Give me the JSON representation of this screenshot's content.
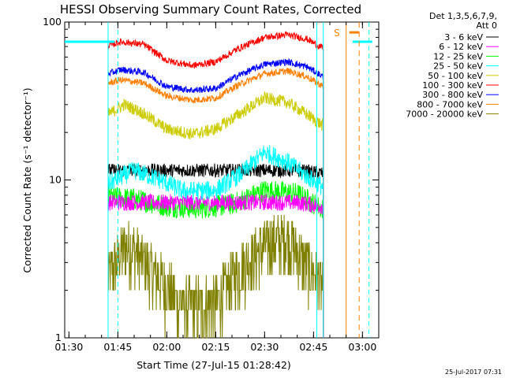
{
  "colors": {
    "3-6": "#000000",
    "6-12": "#ff00ff",
    "12-25": "#00ff00",
    "25-50": "#00ffff",
    "50-100": "#cccc00",
    "100-300": "#ff0000",
    "300-800": "#0000ff",
    "800-7000": "#ff8000",
    "7000-20000": "#808000",
    "attenuator_marker": "#00ffff",
    "saa_marker": "#ff8000"
  },
  "chart_data": {
    "type": "line",
    "title": "HESSI Observing Summary Count Rates, Corrected",
    "xlabel": "Start Time (27-Jul-15 01:28:42)",
    "ylabel": "Corrected Count Rate (s⁻¹ detector⁻¹)",
    "xlim": [
      "01:28:42",
      "03:05:00"
    ],
    "ylim": [
      1,
      100
    ],
    "yscale": "log",
    "x_ticks": [
      "01:30",
      "01:45",
      "02:00",
      "02:15",
      "02:30",
      "02:45",
      "03:00"
    ],
    "y_ticks": [
      "1",
      "10",
      "100"
    ],
    "grid": false,
    "legend_title_lines": [
      "Det 1,3,5,6,7,9,",
      "Att 0"
    ],
    "legend_position": "right",
    "series": [
      {
        "name": "3 - 6 keV",
        "color_key": "3-6",
        "x": [
          "01:42",
          "01:50",
          "02:00",
          "02:10",
          "02:20",
          "02:30",
          "02:40",
          "02:48"
        ],
        "y": [
          11.5,
          11.5,
          11.5,
          11.5,
          11.5,
          11.5,
          11.5,
          11
        ]
      },
      {
        "name": "6 - 12 keV",
        "color_key": "6-12",
        "x": [
          "01:42",
          "01:50",
          "02:00",
          "02:10",
          "02:20",
          "02:30",
          "02:40",
          "02:48"
        ],
        "y": [
          7.2,
          7.2,
          7.2,
          7.2,
          7.2,
          7.2,
          7.2,
          6.8
        ]
      },
      {
        "name": "12 - 25 keV",
        "color_key": "12-25",
        "x": [
          "01:42",
          "01:50",
          "02:00",
          "02:10",
          "02:20",
          "02:30",
          "02:40",
          "02:48"
        ],
        "y": [
          7.8,
          7.6,
          6.8,
          6.6,
          7.0,
          8.6,
          8.2,
          6.5
        ]
      },
      {
        "name": "25 - 50 keV",
        "color_key": "25-50",
        "x": [
          "01:42",
          "01:50",
          "01:58",
          "02:05",
          "02:15",
          "02:23",
          "02:30",
          "02:37",
          "02:43",
          "02:48"
        ],
        "y": [
          9.5,
          11.5,
          10.0,
          8.5,
          8.6,
          11.0,
          15.0,
          13.0,
          10.5,
          9.0
        ]
      },
      {
        "name": "50 - 100 keV",
        "color_key": "50-100",
        "x": [
          "01:42",
          "01:47",
          "01:52",
          "02:00",
          "02:08",
          "02:15",
          "02:22",
          "02:30",
          "02:37",
          "02:43",
          "02:48"
        ],
        "y": [
          26,
          30,
          27,
          21,
          19.5,
          21,
          26,
          33,
          31,
          26,
          22
        ]
      },
      {
        "name": "100 - 300 keV",
        "color_key": "100-300",
        "x": [
          "01:42",
          "01:46",
          "01:53",
          "02:00",
          "02:08",
          "02:15",
          "02:22",
          "02:30",
          "02:37",
          "02:43",
          "02:48"
        ],
        "y": [
          71,
          75,
          72,
          57,
          53,
          56,
          68,
          80,
          83,
          78,
          68
        ]
      },
      {
        "name": "300 - 800 keV",
        "color_key": "300-800",
        "x": [
          "01:42",
          "01:46",
          "01:53",
          "02:00",
          "02:08",
          "02:15",
          "02:22",
          "02:30",
          "02:37",
          "02:43",
          "02:48"
        ],
        "y": [
          47,
          50,
          48,
          39,
          37,
          38,
          46,
          54,
          56,
          52,
          45
        ]
      },
      {
        "name": "800 - 7000 keV",
        "color_key": "800-7000",
        "x": [
          "01:42",
          "01:46",
          "01:53",
          "02:00",
          "02:08",
          "02:15",
          "02:22",
          "02:30",
          "02:37",
          "02:43",
          "02:48"
        ],
        "y": [
          41,
          43,
          41,
          34,
          32,
          33,
          40,
          47,
          49,
          45,
          39
        ]
      },
      {
        "name": "7000 - 20000 keV",
        "color_key": "7000-20000",
        "x": [
          "01:42",
          "01:48",
          "01:55",
          "02:05",
          "02:15",
          "02:23",
          "02:31",
          "02:37",
          "02:43",
          "02:48"
        ],
        "y": [
          2.5,
          4.0,
          2.8,
          1.6,
          1.7,
          2.9,
          4.0,
          4.4,
          2.9,
          2.1
        ]
      }
    ],
    "markers": {
      "attenuator_vlines": [
        "01:45",
        "02:46",
        "03:02"
      ],
      "saa_vline": "02:55",
      "saa_dashed": "02:59",
      "saa_label": "S",
      "horizontal_cyan_segments": [
        {
          "x_from": "01:28:42",
          "x_to": "01:44",
          "y": 75
        },
        {
          "x_from": "02:57",
          "x_to": "03:03",
          "y": 75
        }
      ],
      "saa_bar": {
        "x_from": "02:56",
        "x_to": "02:59",
        "y": 86
      }
    }
  },
  "stamp": "25-Jul-2017 07:31"
}
